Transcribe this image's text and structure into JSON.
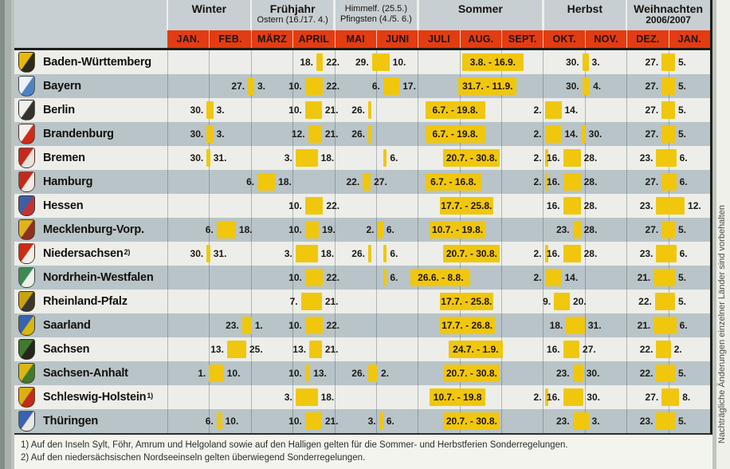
{
  "side_note": "Nachträgliche Änderungen einzelner Länder sind vorbehalten",
  "footnotes": [
    "1) Auf den Inseln Sylt, Föhr, Amrum und Helgoland sowie auf den Halligen gelten für die Sommer- und Herbstferien Sonderregelungen.",
    "2) Auf den niedersächsischen Nordseeinseln gelten überwiegend Sonderregelungen."
  ],
  "colors": {
    "accent_red": "#e23c12",
    "block_yellow": "#f0c70d",
    "band_grey": "#c7cfd3",
    "row_light": "#edeee9",
    "row_dark": "#b8c4c8"
  },
  "header": {
    "seasons": [
      {
        "label": "Winter",
        "sub": "",
        "from": 0,
        "to": 2,
        "style": "bold"
      },
      {
        "label": "Frühjahr",
        "sub": "Ostern (16./17. 4.)",
        "from": 2,
        "to": 4,
        "style": "bold"
      },
      {
        "label": "Himmelf. (25.5.)",
        "sub": "Pfingsten (4./5. 6.)",
        "from": 4,
        "to": 6,
        "style": "small"
      },
      {
        "label": "Sommer",
        "sub": "",
        "from": 6,
        "to": 9,
        "style": "bold"
      },
      {
        "label": "Herbst",
        "sub": "",
        "from": 9,
        "to": 11,
        "style": "bold"
      },
      {
        "label": "Weihnachten",
        "sub": "2006/2007",
        "from": 11,
        "to": 13,
        "style": "boldsub"
      }
    ],
    "months": [
      "JAN.",
      "FEB.",
      "MÄRZ",
      "APRIL",
      "MAI",
      "JUNI",
      "JULI",
      "AUG.",
      "SEPT.",
      "OKT.",
      "NOV.",
      "DEZ.",
      "JAN."
    ]
  },
  "states": [
    {
      "name": "Baden-Württemberg",
      "sup": "",
      "crest": [
        "#e8b908",
        "#2a2a20"
      ],
      "periods": [
        {
          "s": 3.57,
          "e": 3.73,
          "left": "18.",
          "right": "22."
        },
        {
          "s": 4.9,
          "e": 5.32,
          "left": "29.",
          "right": "10."
        },
        {
          "s": 7.06,
          "e": 8.53,
          "label": "3.8. - 16.9."
        },
        {
          "s": 9.94,
          "e": 10.09,
          "left": "30.",
          "right": "3."
        },
        {
          "s": 11.84,
          "e": 12.16,
          "left": "27.",
          "right": "5."
        }
      ]
    },
    {
      "name": "Bayern",
      "sup": "",
      "crest": [
        "#eef2f6",
        "#4d82c6"
      ],
      "periods": [
        {
          "s": 1.93,
          "e": 2.08,
          "left": "27.",
          "right": "3."
        },
        {
          "s": 3.3,
          "e": 3.73,
          "left": "10.",
          "right": "22."
        },
        {
          "s": 5.17,
          "e": 5.56,
          "left": "6.",
          "right": "17."
        },
        {
          "s": 6.97,
          "e": 8.37,
          "label": "31.7. - 11.9."
        },
        {
          "s": 9.94,
          "e": 10.12,
          "left": "30.",
          "right": "4."
        },
        {
          "s": 11.84,
          "e": 12.16,
          "left": "27.",
          "right": "5."
        }
      ]
    },
    {
      "name": "Berlin",
      "sup": "",
      "crest": [
        "#eff0ee",
        "#35322e"
      ],
      "periods": [
        {
          "s": 0.94,
          "e": 1.1,
          "left": "30.",
          "right": "3."
        },
        {
          "s": 3.3,
          "e": 3.7,
          "left": "10.",
          "right": "21."
        },
        {
          "s": 4.81,
          "e": 4.87,
          "left": "26."
        },
        {
          "s": 6.18,
          "e": 7.61,
          "label": "6.7. - 19.8."
        },
        {
          "s": 9.04,
          "e": 9.44,
          "left": "2.",
          "right": "14."
        },
        {
          "s": 11.84,
          "e": 12.16,
          "left": "27.",
          "right": "5."
        }
      ]
    },
    {
      "name": "Brandenburg",
      "sup": "",
      "crest": [
        "#f1f0ea",
        "#cf2c17"
      ],
      "periods": [
        {
          "s": 0.94,
          "e": 1.1,
          "left": "30.",
          "right": "3."
        },
        {
          "s": 3.37,
          "e": 3.7,
          "left": "12.",
          "right": "21."
        },
        {
          "s": 4.81,
          "e": 4.87,
          "left": "26."
        },
        {
          "s": 6.18,
          "e": 7.61,
          "label": "6.7. - 19.8."
        },
        {
          "s": 9.04,
          "e": 9.44,
          "left": "2.",
          "right": "14."
        },
        {
          "s": 9.93,
          "e": 9.99,
          "right": "30."
        },
        {
          "s": 11.84,
          "e": 12.16,
          "left": "27.",
          "right": "5."
        }
      ]
    },
    {
      "name": "Bremen",
      "sup": "",
      "crest": [
        "#c5291c",
        "#e9e4da"
      ],
      "periods": [
        {
          "s": 0.94,
          "e": 1.0,
          "left": "30.",
          "right": "31."
        },
        {
          "s": 3.07,
          "e": 3.6,
          "left": "3.",
          "right": "18."
        },
        {
          "s": 5.17,
          "e": 5.23,
          "right": "6."
        },
        {
          "s": 6.61,
          "e": 7.97,
          "label": "20.7. - 30.8."
        },
        {
          "s": 9.04,
          "e": 9.1,
          "left": "2."
        },
        {
          "s": 9.48,
          "e": 9.9,
          "left": "16.",
          "right": "28."
        },
        {
          "s": 11.71,
          "e": 12.19,
          "left": "23.",
          "right": "6."
        }
      ]
    },
    {
      "name": "Hamburg",
      "sup": "",
      "crest": [
        "#c5291c",
        "#f0ece4"
      ],
      "periods": [
        {
          "s": 2.16,
          "e": 2.58,
          "left": "6.",
          "right": "18."
        },
        {
          "s": 4.68,
          "e": 4.87,
          "left": "22.",
          "right": "27."
        },
        {
          "s": 6.18,
          "e": 7.52,
          "label": "6.7. - 16.8."
        },
        {
          "s": 9.04,
          "e": 9.1,
          "left": "2."
        },
        {
          "s": 9.48,
          "e": 9.9,
          "left": "16.",
          "right": "28."
        },
        {
          "s": 11.84,
          "e": 12.19,
          "left": "27.",
          "right": "6."
        }
      ]
    },
    {
      "name": "Hessen",
      "sup": "",
      "crest": [
        "#3a5fa8",
        "#c23434"
      ],
      "periods": [
        {
          "s": 3.3,
          "e": 3.73,
          "left": "10.",
          "right": "22."
        },
        {
          "s": 6.52,
          "e": 7.81,
          "label": "17.7. - 25.8."
        },
        {
          "s": 9.48,
          "e": 9.9,
          "left": "16.",
          "right": "28."
        },
        {
          "s": 11.71,
          "e": 12.39,
          "left": "23.",
          "right": "12."
        }
      ]
    },
    {
      "name": "Mecklenburg-Vorp.",
      "sup": "",
      "crest": [
        "#e0b31e",
        "#8c3020"
      ],
      "periods": [
        {
          "s": 1.18,
          "e": 1.64,
          "left": "6.",
          "right": "18."
        },
        {
          "s": 3.3,
          "e": 3.63,
          "left": "10.",
          "right": "19."
        },
        {
          "s": 5.03,
          "e": 5.17,
          "left": "2.",
          "right": "6."
        },
        {
          "s": 6.29,
          "e": 7.61,
          "label": "10.7. - 19.8."
        },
        {
          "s": 9.71,
          "e": 9.9,
          "left": "23.",
          "right": "28."
        },
        {
          "s": 11.84,
          "e": 12.16,
          "left": "27.",
          "right": "5."
        }
      ]
    },
    {
      "name": "Niedersachsen",
      "sup": "2)",
      "crest": [
        "#ce2a15",
        "#f2efe8"
      ],
      "periods": [
        {
          "s": 0.94,
          "e": 1.0,
          "left": "30.",
          "right": "31."
        },
        {
          "s": 3.07,
          "e": 3.6,
          "left": "3.",
          "right": "18."
        },
        {
          "s": 4.81,
          "e": 4.87,
          "left": "26."
        },
        {
          "s": 5.17,
          "e": 5.23,
          "right": "6."
        },
        {
          "s": 6.61,
          "e": 7.97,
          "label": "20.7. - 30.8."
        },
        {
          "s": 9.04,
          "e": 9.1,
          "left": "2."
        },
        {
          "s": 9.48,
          "e": 9.9,
          "left": "16.",
          "right": "28."
        },
        {
          "s": 11.71,
          "e": 12.19,
          "left": "23.",
          "right": "6."
        }
      ]
    },
    {
      "name": "Nordrhein-Westfalen",
      "sup": "",
      "crest": [
        "#3c8a52",
        "#eef0ea"
      ],
      "periods": [
        {
          "s": 3.3,
          "e": 3.73,
          "left": "10.",
          "right": "22."
        },
        {
          "s": 5.17,
          "e": 5.23,
          "right": "6."
        },
        {
          "s": 5.83,
          "e": 7.26,
          "label": "26.6. - 8.8."
        },
        {
          "s": 9.04,
          "e": 9.44,
          "left": "2.",
          "right": "14."
        },
        {
          "s": 11.65,
          "e": 12.16,
          "left": "21.",
          "right": "5."
        }
      ]
    },
    {
      "name": "Rheinland-Pfalz",
      "sup": "",
      "crest": [
        "#caa40e",
        "#3a3630"
      ],
      "periods": [
        {
          "s": 3.2,
          "e": 3.7,
          "left": "7.",
          "right": "21."
        },
        {
          "s": 6.52,
          "e": 7.81,
          "label": "17.7. - 25.8."
        },
        {
          "s": 9.26,
          "e": 9.64,
          "left": "9.",
          "right": "20."
        },
        {
          "s": 11.68,
          "e": 12.16,
          "left": "22.",
          "right": "5."
        }
      ]
    },
    {
      "name": "Saarland",
      "sup": "",
      "crest": [
        "#3a62ae",
        "#d8b70e"
      ],
      "periods": [
        {
          "s": 1.79,
          "e": 2.02,
          "left": "23.",
          "right": "1."
        },
        {
          "s": 3.3,
          "e": 3.73,
          "left": "10.",
          "right": "22."
        },
        {
          "s": 6.52,
          "e": 7.84,
          "label": "17.7. - 26.8."
        },
        {
          "s": 9.55,
          "e": 10.0,
          "left": "18.",
          "right": "31."
        },
        {
          "s": 11.65,
          "e": 12.19,
          "left": "21.",
          "right": "6."
        }
      ]
    },
    {
      "name": "Sachsen",
      "sup": "",
      "crest": [
        "#3f7a2e",
        "#26261f"
      ],
      "periods": [
        {
          "s": 1.43,
          "e": 1.89,
          "left": "13.",
          "right": "25."
        },
        {
          "s": 3.4,
          "e": 3.7,
          "left": "13.",
          "right": "21."
        },
        {
          "s": 6.74,
          "e": 8.03,
          "label": "24.7. - 1.9."
        },
        {
          "s": 9.48,
          "e": 9.87,
          "left": "16.",
          "right": "27."
        },
        {
          "s": 11.71,
          "e": 12.06,
          "left": "22.",
          "right": "2."
        }
      ]
    },
    {
      "name": "Sachsen-Anhalt",
      "sup": "",
      "crest": [
        "#ddb515",
        "#3f7a2e"
      ],
      "periods": [
        {
          "s": 1.0,
          "e": 1.35,
          "left": "1.",
          "right": "10."
        },
        {
          "s": 3.3,
          "e": 3.42,
          "left": "10.",
          "right": "13."
        },
        {
          "s": 4.81,
          "e": 5.04,
          "left": "26.",
          "right": "2."
        },
        {
          "s": 6.61,
          "e": 7.97,
          "label": "20.7. - 30.8."
        },
        {
          "s": 9.71,
          "e": 9.96,
          "left": "23.",
          "right": "30."
        },
        {
          "s": 11.71,
          "e": 12.16,
          "left": "22.",
          "right": "5."
        }
      ]
    },
    {
      "name": "Schleswig-Holstein",
      "sup": "1)",
      "crest": [
        "#d8b20e",
        "#c5291c"
      ],
      "periods": [
        {
          "s": 3.07,
          "e": 3.6,
          "left": "3.",
          "right": "18."
        },
        {
          "s": 6.29,
          "e": 7.61,
          "label": "10.7. - 19.8"
        },
        {
          "s": 9.04,
          "e": 9.1,
          "left": "2."
        },
        {
          "s": 9.48,
          "e": 9.97,
          "left": "16.",
          "right": "30."
        },
        {
          "s": 11.84,
          "e": 12.26,
          "left": "27.",
          "right": "8."
        }
      ]
    },
    {
      "name": "Thüringen",
      "sup": "",
      "crest": [
        "#3a62ae",
        "#e8e8e2"
      ],
      "periods": [
        {
          "s": 1.18,
          "e": 1.31,
          "left": "6.",
          "right": "10."
        },
        {
          "s": 3.3,
          "e": 3.7,
          "left": "10.",
          "right": "21."
        },
        {
          "s": 5.07,
          "e": 5.17,
          "left": "3.",
          "right": "6."
        },
        {
          "s": 6.61,
          "e": 7.97,
          "label": "20.7. - 30.8."
        },
        {
          "s": 9.71,
          "e": 10.09,
          "left": "23.",
          "right": "3."
        },
        {
          "s": 11.71,
          "e": 12.16,
          "left": "23.",
          "right": "5."
        }
      ]
    }
  ]
}
